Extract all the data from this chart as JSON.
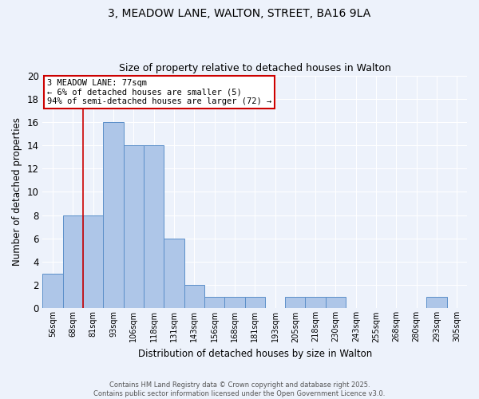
{
  "title": "3, MEADOW LANE, WALTON, STREET, BA16 9LA",
  "subtitle": "Size of property relative to detached houses in Walton",
  "xlabel": "Distribution of detached houses by size in Walton",
  "ylabel": "Number of detached properties",
  "bin_labels": [
    "56sqm",
    "68sqm",
    "81sqm",
    "93sqm",
    "106sqm",
    "118sqm",
    "131sqm",
    "143sqm",
    "156sqm",
    "168sqm",
    "181sqm",
    "193sqm",
    "205sqm",
    "218sqm",
    "230sqm",
    "243sqm",
    "255sqm",
    "268sqm",
    "280sqm",
    "293sqm",
    "305sqm"
  ],
  "bar_values": [
    3,
    8,
    8,
    16,
    14,
    14,
    6,
    2,
    1,
    1,
    1,
    0,
    1,
    1,
    1,
    0,
    0,
    0,
    0,
    1,
    0
  ],
  "bar_color": "#aec6e8",
  "bar_edge_color": "#5b8fc9",
  "background_color": "#edf2fb",
  "grid_color": "#ffffff",
  "vline_bin_index": 2,
  "annotation_text": "3 MEADOW LANE: 77sqm\n← 6% of detached houses are smaller (5)\n94% of semi-detached houses are larger (72) →",
  "annotation_box_color": "#ffffff",
  "annotation_box_edge": "#cc0000",
  "vline_color": "#cc0000",
  "ylim": [
    0,
    20
  ],
  "yticks": [
    0,
    2,
    4,
    6,
    8,
    10,
    12,
    14,
    16,
    18,
    20
  ],
  "footer": "Contains HM Land Registry data © Crown copyright and database right 2025.\nContains public sector information licensed under the Open Government Licence v3.0.",
  "title_fontsize": 10,
  "subtitle_fontsize": 9
}
